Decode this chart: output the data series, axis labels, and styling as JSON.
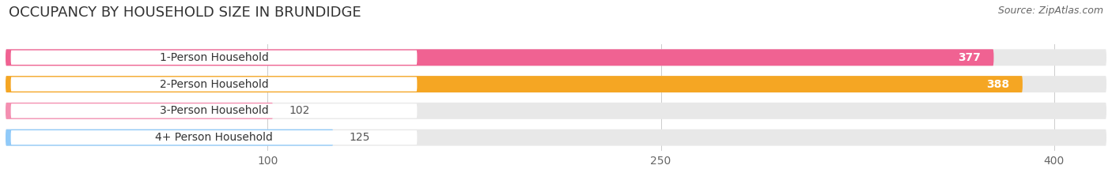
{
  "title": "OCCUPANCY BY HOUSEHOLD SIZE IN BRUNDIDGE",
  "source": "Source: ZipAtlas.com",
  "categories": [
    "1-Person Household",
    "2-Person Household",
    "3-Person Household",
    "4+ Person Household"
  ],
  "values": [
    377,
    388,
    102,
    125
  ],
  "bar_colors": [
    "#f06292",
    "#f5a623",
    "#f48fb1",
    "#90caf9"
  ],
  "xlim_max": 420,
  "xticks": [
    100,
    250,
    400
  ],
  "background_color": "#ffffff",
  "bar_bg_color": "#e8e8e8",
  "label_pill_color": "#ffffff",
  "title_fontsize": 13,
  "source_fontsize": 9,
  "tick_fontsize": 10,
  "label_fontsize": 10,
  "value_fontsize": 10
}
